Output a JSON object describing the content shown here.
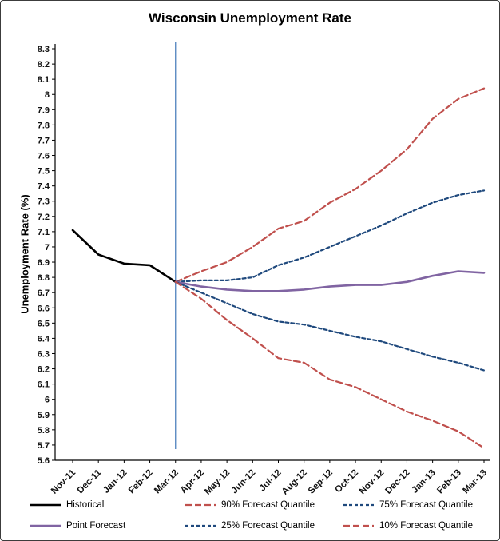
{
  "chart_data": {
    "type": "line",
    "title": "Wisconsin Unemployment Rate",
    "ylabel": "Unemployment Rate (%)",
    "xlabel": "",
    "ylim": [
      5.6,
      8.3
    ],
    "ytick_step": 0.1,
    "grid": false,
    "legend_position": "bottom",
    "forecast_start": "Mar-12",
    "divider_color": "#4f81bd",
    "categories": [
      "Nov-11",
      "Dec-11",
      "Jan-12",
      "Feb-12",
      "Mar-12",
      "Apr-12",
      "May-12",
      "Jun-12",
      "Jul-12",
      "Aug-12",
      "Sep-12",
      "Oct-12",
      "Nov-12",
      "Dec-12",
      "Jan-13",
      "Feb-13",
      "Mar-13"
    ],
    "series": [
      {
        "name": "Historical",
        "color": "#000000",
        "dash": "solid",
        "width": 2.6,
        "values": [
          7.11,
          6.95,
          6.89,
          6.88,
          6.77,
          null,
          null,
          null,
          null,
          null,
          null,
          null,
          null,
          null,
          null,
          null,
          null
        ]
      },
      {
        "name": "90% Forecast Quantile",
        "color": "#c0504d",
        "dash": "8 4",
        "width": 2.2,
        "values": [
          null,
          null,
          null,
          null,
          6.77,
          6.84,
          6.9,
          7.0,
          7.12,
          7.17,
          7.29,
          7.38,
          7.5,
          7.64,
          7.84,
          7.97,
          8.04
        ]
      },
      {
        "name": "75% Forecast Quantile",
        "color": "#1f497d",
        "dash": "4 3",
        "width": 2.2,
        "values": [
          null,
          null,
          null,
          null,
          6.77,
          6.78,
          6.78,
          6.8,
          6.88,
          6.93,
          7.0,
          7.07,
          7.14,
          7.22,
          7.29,
          7.34,
          7.37
        ]
      },
      {
        "name": "Point Forecast",
        "color": "#8064a2",
        "dash": "solid",
        "width": 2.6,
        "values": [
          null,
          null,
          null,
          null,
          6.77,
          6.74,
          6.72,
          6.71,
          6.71,
          6.72,
          6.74,
          6.75,
          6.75,
          6.77,
          6.81,
          6.84,
          6.83
        ]
      },
      {
        "name": "25% Forecast Quantile",
        "color": "#1f497d",
        "dash": "4 3",
        "width": 2.2,
        "values": [
          null,
          null,
          null,
          null,
          6.77,
          6.7,
          6.63,
          6.56,
          6.51,
          6.49,
          6.45,
          6.41,
          6.38,
          6.33,
          6.28,
          6.24,
          6.19
        ]
      },
      {
        "name": "10% Forecast Quantile",
        "color": "#c0504d",
        "dash": "8 4",
        "width": 2.2,
        "values": [
          null,
          null,
          null,
          null,
          6.77,
          6.66,
          6.52,
          6.4,
          6.27,
          6.24,
          6.13,
          6.08,
          6.0,
          5.92,
          5.86,
          5.79,
          5.68
        ]
      }
    ],
    "legend_order": [
      "Historical",
      "90% Forecast Quantile",
      "75% Forecast Quantile",
      "Point Forecast",
      "25% Forecast Quantile",
      "10% Forecast Quantile"
    ]
  }
}
